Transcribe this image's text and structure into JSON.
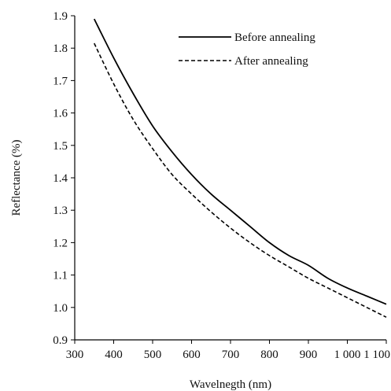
{
  "chart_data": {
    "type": "line",
    "title": "",
    "xlabel": "Wavelnegth (nm)",
    "ylabel": "Reflectance (%)",
    "xlim": [
      300,
      1100
    ],
    "ylim": [
      0.9,
      1.9
    ],
    "xticks": [
      300,
      400,
      500,
      600,
      700,
      800,
      900,
      1000,
      1100
    ],
    "xtick_labels": [
      "300",
      "400",
      "500",
      "600",
      "700",
      "800",
      "900",
      "1 000",
      "1 100"
    ],
    "yticks": [
      0.9,
      1.0,
      1.1,
      1.2,
      1.3,
      1.4,
      1.5,
      1.6,
      1.7,
      1.8,
      1.9
    ],
    "ytick_labels": [
      "0.9",
      "1.0",
      "1.1",
      "1.2",
      "1.3",
      "1.4",
      "1.5",
      "1.6",
      "1.7",
      "1.8",
      "1.9"
    ],
    "grid": false,
    "legend_position": "top-right",
    "x": [
      350,
      400,
      450,
      500,
      550,
      600,
      650,
      700,
      750,
      800,
      850,
      900,
      950,
      1000,
      1050,
      1100
    ],
    "series": [
      {
        "name": "Before annealing",
        "style": "solid",
        "color": "#000000",
        "values": [
          1.89,
          1.77,
          1.66,
          1.56,
          1.48,
          1.41,
          1.35,
          1.3,
          1.25,
          1.2,
          1.16,
          1.13,
          1.09,
          1.06,
          1.035,
          1.01
        ]
      },
      {
        "name": "After annealing",
        "style": "dashed",
        "color": "#000000",
        "values": [
          1.815,
          1.69,
          1.58,
          1.49,
          1.41,
          1.35,
          1.295,
          1.245,
          1.2,
          1.16,
          1.125,
          1.09,
          1.06,
          1.03,
          1.0,
          0.97
        ]
      }
    ]
  }
}
